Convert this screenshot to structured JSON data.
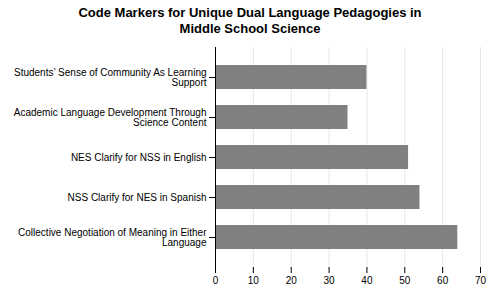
{
  "chart_data": {
    "type": "bar",
    "title": "Code Markers for Unique Dual Language Pedagogies in\nMiddle School Science",
    "categories": [
      "Collective Negotiation of Meaning in Either\nLanguage",
      "NSS Clarify for NES in Spanish",
      "NES Clarify for NSS in English",
      "Academic Language Development Through\nScience Content",
      "Students’ Sense of Community As Learning\nSupport"
    ],
    "values": [
      64,
      54,
      51,
      35,
      40
    ],
    "color": "#808080",
    "orientation": "horizontal",
    "xlim": [
      0,
      70
    ],
    "xticks": [
      0,
      10,
      20,
      30,
      40,
      50,
      60,
      70
    ],
    "grid": true
  }
}
